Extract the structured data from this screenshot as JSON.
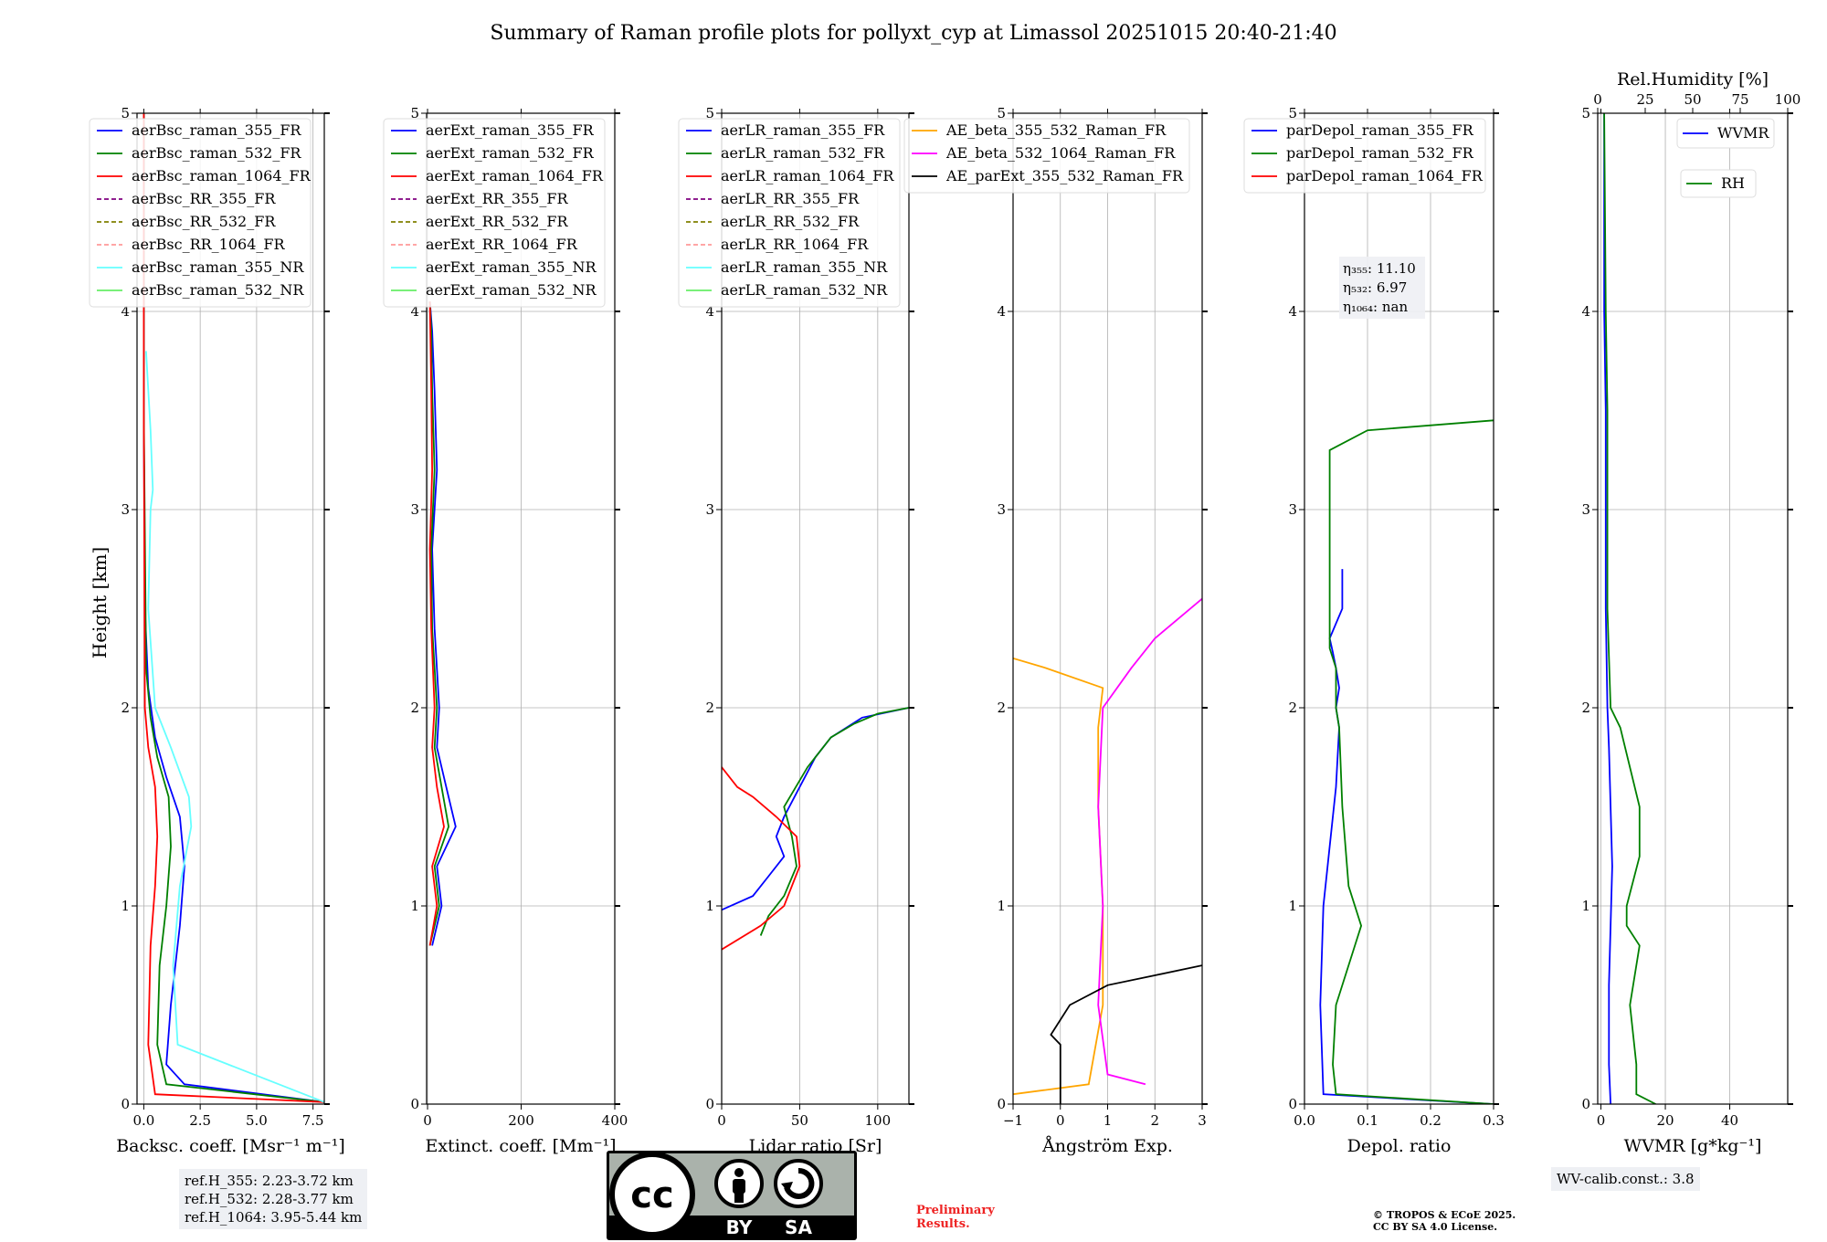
{
  "chart_data": {
    "type": "line",
    "title": "Summary of Raman profile plots for pollyxt_cyp at Limassol 20251015 20:40-21:40",
    "ylabel": "Height [km]",
    "ylim": [
      0,
      5
    ],
    "yticks": [
      "0",
      "1",
      "2",
      "3",
      "4",
      "5"
    ],
    "panels": [
      {
        "id": "backscatter",
        "xlabel": "Backsc. coeff. [Msr⁻¹ m⁻¹]",
        "xlim": [
          -0.3,
          8
        ],
        "xticks": [
          0,
          2.5,
          5,
          7.5
        ],
        "xticklabels": [
          "0.0",
          "2.5",
          "5.0",
          "7.5"
        ],
        "legend": [
          {
            "name": "aerBsc_raman_355_FR",
            "color": "#0000ff",
            "dash": false
          },
          {
            "name": "aerBsc_raman_532_FR",
            "color": "#008000",
            "dash": false
          },
          {
            "name": "aerBsc_raman_1064_FR",
            "color": "#ff0000",
            "dash": false
          },
          {
            "name": "aerBsc_RR_355_FR",
            "color": "#800080",
            "dash": true
          },
          {
            "name": "aerBsc_RR_532_FR",
            "color": "#808000",
            "dash": true
          },
          {
            "name": "aerBsc_RR_1064_FR",
            "color": "#ff9999",
            "dash": true
          },
          {
            "name": "aerBsc_raman_355_NR",
            "color": "#66ffff",
            "dash": false
          },
          {
            "name": "aerBsc_raman_532_NR",
            "color": "#66ee66",
            "dash": false
          }
        ],
        "series": [
          {
            "name": "aerBsc_raman_355_FR",
            "color": "#0000ff",
            "x": [
              8,
              1.8,
              1.0,
              1.2,
              1.6,
              1.8,
              1.6,
              1.0,
              0.5,
              0.2,
              0.05,
              0.0,
              0.0
            ],
            "y": [
              0.01,
              0.1,
              0.2,
              0.5,
              0.9,
              1.2,
              1.45,
              1.65,
              1.85,
              2.1,
              2.5,
              3.5,
              5
            ]
          },
          {
            "name": "aerBsc_raman_532_FR",
            "color": "#008000",
            "x": [
              8,
              1.0,
              0.6,
              0.7,
              1.0,
              1.2,
              1.1,
              0.6,
              0.3,
              0.1,
              0.0,
              0.0
            ],
            "y": [
              0.01,
              0.1,
              0.3,
              0.7,
              1.0,
              1.3,
              1.55,
              1.75,
              1.95,
              2.2,
              3.5,
              5
            ]
          },
          {
            "name": "aerBsc_raman_1064_FR",
            "color": "#ff0000",
            "x": [
              8,
              0.5,
              0.2,
              0.3,
              0.5,
              0.6,
              0.5,
              0.2,
              0.05,
              0.0,
              0.0
            ],
            "y": [
              0.01,
              0.05,
              0.3,
              0.8,
              1.1,
              1.35,
              1.6,
              1.8,
              2.0,
              3.5,
              5
            ]
          },
          {
            "name": "aerBsc_raman_355_NR",
            "color": "#66ffff",
            "x": [
              8,
              1.5,
              1.3,
              1.6,
              2.1,
              2.0,
              1.2,
              0.5,
              0.2,
              0.3,
              0.4,
              0.3,
              0.1
            ],
            "y": [
              0.01,
              0.3,
              0.7,
              1.1,
              1.4,
              1.55,
              1.8,
              2.0,
              2.5,
              3.0,
              3.1,
              3.4,
              3.8
            ]
          }
        ]
      },
      {
        "id": "extinction",
        "xlabel": "Extinct. coeff. [Mm⁻¹]",
        "xlim": [
          -2,
          400
        ],
        "xticks": [
          0,
          200,
          400
        ],
        "xticklabels": [
          "0",
          "200",
          "400"
        ],
        "legend": [
          {
            "name": "aerExt_raman_355_FR",
            "color": "#0000ff",
            "dash": false
          },
          {
            "name": "aerExt_raman_532_FR",
            "color": "#008000",
            "dash": false
          },
          {
            "name": "aerExt_raman_1064_FR",
            "color": "#ff0000",
            "dash": false
          },
          {
            "name": "aerExt_RR_355_FR",
            "color": "#800080",
            "dash": true
          },
          {
            "name": "aerExt_RR_532_FR",
            "color": "#808000",
            "dash": true
          },
          {
            "name": "aerExt_RR_1064_FR",
            "color": "#ff9999",
            "dash": true
          },
          {
            "name": "aerExt_raman_355_NR",
            "color": "#66ffff",
            "dash": false
          },
          {
            "name": "aerExt_raman_532_NR",
            "color": "#66ee66",
            "dash": false
          }
        ],
        "series": [
          {
            "name": "aerExt_raman_355_FR",
            "color": "#0000ff",
            "x": [
              10,
              30,
              20,
              60,
              40,
              20,
              25,
              15,
              10,
              20,
              15,
              10,
              5
            ],
            "y": [
              0.8,
              1.0,
              1.2,
              1.4,
              1.6,
              1.8,
              2.0,
              2.4,
              2.8,
              3.2,
              3.6,
              3.9,
              4.05
            ]
          },
          {
            "name": "aerExt_raman_532_FR",
            "color": "#008000",
            "x": [
              5,
              25,
              15,
              45,
              30,
              15,
              20,
              10,
              8,
              15,
              10,
              8,
              5
            ],
            "y": [
              0.8,
              1.0,
              1.2,
              1.4,
              1.6,
              1.8,
              2.0,
              2.4,
              2.8,
              3.2,
              3.6,
              3.9,
              4.05
            ]
          },
          {
            "name": "aerExt_raman_1064_FR",
            "color": "#ff0000",
            "x": [
              5,
              20,
              10,
              35,
              20,
              10,
              15,
              8,
              5,
              10,
              8,
              6,
              5
            ],
            "y": [
              0.8,
              1.0,
              1.2,
              1.4,
              1.6,
              1.8,
              2.0,
              2.4,
              2.8,
              3.2,
              3.6,
              3.9,
              4.05
            ]
          }
        ]
      },
      {
        "id": "lidar_ratio",
        "xlabel": "Lidar ratio [Sr]",
        "xlim": [
          0,
          120
        ],
        "xticks": [
          0,
          50,
          100
        ],
        "xticklabels": [
          "0",
          "50",
          "100"
        ],
        "legend": [
          {
            "name": "aerLR_raman_355_FR",
            "color": "#0000ff",
            "dash": false
          },
          {
            "name": "aerLR_raman_532_FR",
            "color": "#008000",
            "dash": false
          },
          {
            "name": "aerLR_raman_1064_FR",
            "color": "#ff0000",
            "dash": false
          },
          {
            "name": "aerLR_RR_355_FR",
            "color": "#800080",
            "dash": true
          },
          {
            "name": "aerLR_RR_532_FR",
            "color": "#808000",
            "dash": true
          },
          {
            "name": "aerLR_RR_1064_FR",
            "color": "#ff9999",
            "dash": true
          },
          {
            "name": "aerLR_raman_355_NR",
            "color": "#66ffff",
            "dash": false
          },
          {
            "name": "aerLR_raman_532_NR",
            "color": "#66ee66",
            "dash": false
          }
        ],
        "series": [
          {
            "name": "aerLR_raman_355_FR",
            "color": "#0000ff",
            "x": [
              0,
              20,
              30,
              40,
              35,
              40,
              50,
              60,
              70,
              90,
              120
            ],
            "y": [
              0.98,
              1.05,
              1.15,
              1.25,
              1.35,
              1.45,
              1.6,
              1.75,
              1.85,
              1.95,
              2.0
            ]
          },
          {
            "name": "aerLR_raman_532_FR",
            "color": "#008000",
            "x": [
              25,
              30,
              40,
              48,
              45,
              40,
              55,
              70,
              85,
              100,
              120
            ],
            "y": [
              0.85,
              0.95,
              1.05,
              1.2,
              1.35,
              1.5,
              1.7,
              1.85,
              1.92,
              1.97,
              2.0
            ]
          },
          {
            "name": "aerLR_raman_1064_FR",
            "color": "#ff0000",
            "x": [
              0,
              25,
              40,
              50,
              48,
              35,
              20,
              10,
              0
            ],
            "y": [
              0.78,
              0.9,
              1.0,
              1.2,
              1.35,
              1.45,
              1.55,
              1.6,
              1.7
            ]
          }
        ]
      },
      {
        "id": "angstrom",
        "xlabel": "Ångström Exp.",
        "xlim": [
          -1,
          3
        ],
        "xticks": [
          -1,
          0,
          1,
          2,
          3
        ],
        "xticklabels": [
          "−1",
          "0",
          "1",
          "2",
          "3"
        ],
        "legend": [
          {
            "name": "AE_beta_355_532_Raman_FR",
            "color": "#ffa500",
            "dash": false
          },
          {
            "name": "AE_beta_532_1064_Raman_FR",
            "color": "#ff00ff",
            "dash": false
          },
          {
            "name": "AE_parExt_355_532_Raman_FR",
            "color": "#000000",
            "dash": false
          }
        ],
        "series": [
          {
            "name": "AE_beta_355_532_Raman_FR",
            "color": "#ffa500",
            "x": [
              -1,
              0.6,
              0.9,
              0.9,
              0.8,
              0.8,
              0.9,
              -0.3,
              -1
            ],
            "y": [
              0.05,
              0.1,
              0.5,
              1.0,
              1.5,
              1.9,
              2.1,
              2.2,
              2.25
            ]
          },
          {
            "name": "AE_beta_532_1064_Raman_FR",
            "color": "#ff00ff",
            "x": [
              1.8,
              1.0,
              0.8,
              0.9,
              0.8,
              0.9,
              1.5,
              2.0,
              2.5,
              3
            ],
            "y": [
              0.1,
              0.15,
              0.5,
              1.0,
              1.5,
              2.0,
              2.2,
              2.35,
              2.45,
              2.55
            ]
          },
          {
            "name": "AE_parExt_355_532_Raman_FR",
            "color": "#000000",
            "x": [
              0,
              0,
              -0.2,
              0.2,
              1.0,
              2.0,
              3
            ],
            "y": [
              0.0,
              0.3,
              0.35,
              0.5,
              0.6,
              0.65,
              0.7
            ]
          }
        ]
      },
      {
        "id": "depol",
        "xlabel": "Depol. ratio",
        "xlim": [
          0,
          0.3
        ],
        "xticks": [
          0,
          0.1,
          0.2,
          0.3
        ],
        "xticklabels": [
          "0.0",
          "0.1",
          "0.2",
          "0.3"
        ],
        "legend": [
          {
            "name": "parDepol_raman_355_FR",
            "color": "#0000ff",
            "dash": false
          },
          {
            "name": "parDepol_raman_532_FR",
            "color": "#008000",
            "dash": false
          },
          {
            "name": "parDepol_raman_1064_FR",
            "color": "#ff0000",
            "dash": false
          }
        ],
        "eta_labels": [
          "η₃₅₅: 11.10",
          "η₅₃₂: 6.97",
          "η₁₀₆₄: nan"
        ],
        "series": [
          {
            "name": "parDepol_raman_355_FR",
            "color": "#0000ff",
            "x": [
              0.3,
              0.03,
              0.025,
              0.03,
              0.04,
              0.05,
              0.055,
              0.05,
              0.055,
              0.05,
              0.045,
              0.04,
              0.06,
              0.06
            ],
            "y": [
              0.0,
              0.05,
              0.5,
              1.0,
              1.3,
              1.6,
              1.9,
              2.0,
              2.1,
              2.2,
              2.28,
              2.35,
              2.5,
              2.7
            ]
          },
          {
            "name": "parDepol_raman_532_FR",
            "color": "#008000",
            "x": [
              0.3,
              0.05,
              0.045,
              0.05,
              0.08,
              0.09,
              0.07,
              0.06,
              0.055,
              0.05,
              0.05,
              0.04,
              0.04,
              0.1,
              0.3
            ],
            "y": [
              0.0,
              0.05,
              0.2,
              0.5,
              0.8,
              0.9,
              1.1,
              1.5,
              1.9,
              2.0,
              2.2,
              2.3,
              3.3,
              3.4,
              3.45
            ]
          }
        ]
      },
      {
        "id": "wvmr",
        "xlabel": "WVMR [g*kg⁻¹]",
        "xlim": [
          -1,
          58
        ],
        "xticks": [
          0,
          20,
          40
        ],
        "xticklabels": [
          "0",
          "20",
          "40"
        ],
        "top_axis_label": "Rel.Humidity [%]",
        "top_xlim": [
          0,
          100
        ],
        "top_xticks": [
          0,
          25,
          50,
          75,
          100
        ],
        "top_xticklabels": [
          "0",
          "25",
          "50",
          "75",
          "100"
        ],
        "legend_wvmr": "WVMR",
        "legend_rh": "RH",
        "series": [
          {
            "name": "WVMR",
            "color": "#0000ff",
            "x": [
              3,
              2.5,
              2.5,
              3,
              3.5,
              3,
              2.5,
              2,
              1.5,
              1.5,
              1.5,
              1,
              1
            ],
            "y": [
              0.0,
              0.2,
              0.6,
              0.9,
              1.2,
              1.5,
              1.8,
              2.0,
              2.5,
              3.0,
              3.5,
              4.0,
              5.0
            ]
          },
          {
            "name": "RH",
            "color": "#008000",
            "x": [
              17,
              11,
              11,
              9,
              11,
              12,
              8,
              8,
              12,
              12,
              6,
              3,
              2,
              2,
              2,
              1.5,
              1
            ],
            "y": [
              0.0,
              0.05,
              0.2,
              0.5,
              0.7,
              0.8,
              0.9,
              1.0,
              1.25,
              1.5,
              1.9,
              2.0,
              2.5,
              3.0,
              3.5,
              4.0,
              5.0
            ]
          }
        ]
      }
    ]
  },
  "notes": {
    "refH": [
      "ref.H_355: 2.23-3.72 km",
      "ref.H_532: 2.28-3.77 km",
      "ref.H_1064: 3.95-5.44 km"
    ],
    "wv_calib": "WV-calib.const.: 3.8",
    "preliminary": [
      "Preliminary",
      "Results."
    ],
    "copyright": [
      "© TROPOS & ECoE 2025.",
      "CC BY SA 4.0 License."
    ],
    "cc_badge": {
      "cc": "cc",
      "by": "BY",
      "sa": "SA"
    }
  }
}
